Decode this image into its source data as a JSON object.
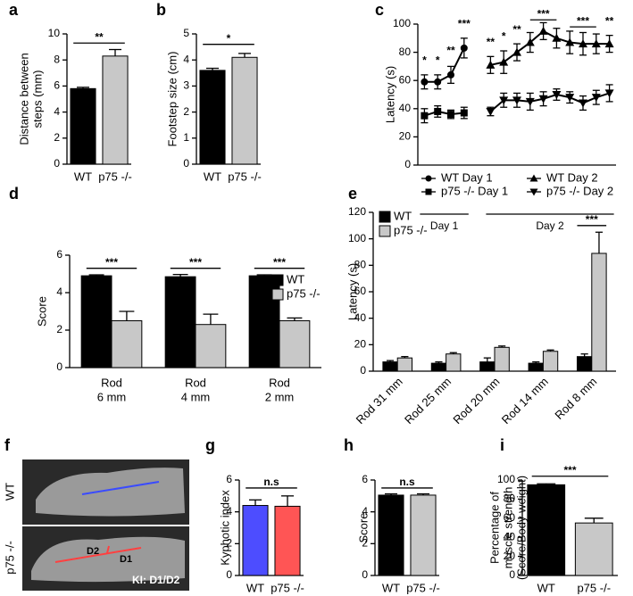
{
  "chart_data": [
    {
      "type": "bar",
      "panel": "a",
      "ylabel": [
        "Distance between",
        "steps (mm)"
      ],
      "categories": [
        "WT",
        "p75 -/-"
      ],
      "values": [
        5.8,
        8.3
      ],
      "errors": [
        0.1,
        0.5
      ],
      "colors": [
        "#000000",
        "#c8c8c8"
      ],
      "ylim": [
        0,
        10
      ],
      "yticks": [
        0,
        2,
        4,
        6,
        8,
        10
      ],
      "significance": [
        "**"
      ]
    },
    {
      "type": "bar",
      "panel": "b",
      "ylabel": [
        "Footstep size (cm)"
      ],
      "categories": [
        "WT",
        "p75 -/-"
      ],
      "values": [
        3.6,
        4.1
      ],
      "errors": [
        0.08,
        0.15
      ],
      "colors": [
        "#000000",
        "#c8c8c8"
      ],
      "ylim": [
        0,
        5
      ],
      "yticks": [
        0,
        1,
        2,
        3,
        4,
        5
      ],
      "significance": [
        "*"
      ]
    },
    {
      "type": "line",
      "panel": "c",
      "ylabel": [
        "Latency (s)"
      ],
      "categories": [
        null,
        null,
        null,
        null,
        null,
        null,
        null,
        null,
        null,
        null,
        null,
        null,
        null,
        null,
        null
      ],
      "ylim": [
        0,
        100
      ],
      "yticks": [
        0,
        20,
        40,
        60,
        80,
        100
      ],
      "series": [
        {
          "name": "WT Day 1",
          "marker": "circle",
          "color": "#000000",
          "values": [
            59,
            59,
            64,
            83,
            null,
            null,
            null,
            null,
            null,
            null,
            null,
            null,
            null,
            null,
            null
          ],
          "errors": [
            5,
            5,
            6,
            7,
            null,
            null,
            null,
            null,
            null,
            null,
            null,
            null,
            null,
            null,
            null
          ]
        },
        {
          "name": "WT Day 2",
          "marker": "triangle",
          "color": "#000000",
          "values": [
            null,
            null,
            null,
            null,
            null,
            71,
            73,
            80,
            87,
            95,
            90,
            87,
            86,
            86,
            86
          ],
          "errors": [
            null,
            null,
            null,
            null,
            null,
            6,
            8,
            6,
            7,
            6,
            7,
            8,
            8,
            7,
            6
          ]
        },
        {
          "name": "p75 -/- Day 1",
          "marker": "square",
          "color": "#000000",
          "values": [
            35,
            38,
            36,
            37,
            null,
            null,
            null,
            null,
            null,
            null,
            null,
            null,
            null,
            null,
            null
          ],
          "errors": [
            5,
            4,
            3,
            4,
            null,
            null,
            null,
            null,
            null,
            null,
            null,
            null,
            null,
            null,
            null
          ]
        },
        {
          "name": "p75 -/- Day 2",
          "marker": "triangle-down",
          "color": "#000000",
          "values": [
            null,
            null,
            null,
            null,
            null,
            38,
            46,
            46,
            45,
            47,
            50,
            48,
            44,
            48,
            51
          ],
          "errors": [
            null,
            null,
            null,
            null,
            null,
            3,
            5,
            5,
            6,
            5,
            4,
            4,
            5,
            5,
            6
          ]
        }
      ],
      "significance": [
        "*",
        "*",
        "**",
        "***",
        "**",
        "*",
        "**",
        "***",
        "***",
        "**"
      ],
      "day_labels": [
        "Day 1",
        "Day 2"
      ]
    },
    {
      "type": "bar",
      "panel": "d",
      "ylabel": [
        "Score"
      ],
      "categories": [
        [
          "Rod",
          "6 mm"
        ],
        [
          "Rod",
          "4 mm"
        ],
        [
          "Rod",
          "2 mm"
        ]
      ],
      "ylim": [
        0,
        6
      ],
      "yticks": [
        0,
        2,
        4,
        6
      ],
      "series": [
        {
          "name": "WT",
          "color": "#000000",
          "values": [
            4.9,
            4.85,
            4.9
          ],
          "errors": [
            0.05,
            0.12,
            0.05
          ]
        },
        {
          "name": "p75 -/-",
          "color": "#c8c8c8",
          "values": [
            2.5,
            2.3,
            2.5
          ],
          "errors": [
            0.5,
            0.55,
            0.15
          ]
        }
      ],
      "significance": [
        "***",
        "***",
        "***"
      ]
    },
    {
      "type": "bar",
      "panel": "e",
      "ylabel": [
        "Latency (s)"
      ],
      "categories": [
        "Rod 31 mm",
        "Rod 25 mm",
        "Rod 20 mm",
        "Rod 14 mm",
        "Rod 8 mm"
      ],
      "ylim": [
        0,
        120
      ],
      "yticks": [
        0,
        20,
        40,
        60,
        80,
        100,
        120
      ],
      "series": [
        {
          "name": "WT",
          "color": "#000000",
          "values": [
            7,
            6,
            7,
            6,
            11
          ],
          "errors": [
            1,
            1,
            3,
            1,
            2
          ]
        },
        {
          "name": "p75 -/-",
          "color": "#c8c8c8",
          "values": [
            10,
            13,
            18,
            15,
            89
          ],
          "errors": [
            1,
            1,
            1,
            1,
            16
          ]
        }
      ],
      "significance": [
        "***"
      ]
    },
    {
      "type": "image",
      "panel": "f",
      "labels": [
        "WT",
        "p75 -/-",
        "D2",
        "D1",
        "KI: D1/D2"
      ]
    },
    {
      "type": "bar",
      "panel": "g",
      "ylabel": [
        "Kyphotic index"
      ],
      "categories": [
        "WT",
        "p75 -/-"
      ],
      "values": [
        4.4,
        4.35
      ],
      "errors": [
        0.35,
        0.65
      ],
      "colors": [
        "#4d4dff",
        "#ff5555"
      ],
      "ylim": [
        0,
        6
      ],
      "yticks": [
        0,
        2,
        4,
        6
      ],
      "significance": [
        "n.s"
      ]
    },
    {
      "type": "bar",
      "panel": "h",
      "ylabel": [
        "Score"
      ],
      "categories": [
        "WT",
        "p75 -/-"
      ],
      "values": [
        5.05,
        5.05
      ],
      "errors": [
        0.08,
        0.08
      ],
      "colors": [
        "#000000",
        "#c8c8c8"
      ],
      "ylim": [
        0,
        6
      ],
      "yticks": [
        0,
        2,
        4,
        6
      ],
      "significance": [
        "n.s"
      ]
    },
    {
      "type": "bar",
      "panel": "i",
      "ylabel": [
        "Percentage of",
        "muscle strength",
        "(Score/Body weight)"
      ],
      "categories": [
        "WT",
        "p75 -/-"
      ],
      "values": [
        95,
        55
      ],
      "errors": [
        1,
        5
      ],
      "colors": [
        "#000000",
        "#c8c8c8"
      ],
      "ylim": [
        0,
        100
      ],
      "yticks": [
        0,
        20,
        40,
        60,
        80,
        100
      ],
      "significance": [
        "***"
      ]
    }
  ]
}
